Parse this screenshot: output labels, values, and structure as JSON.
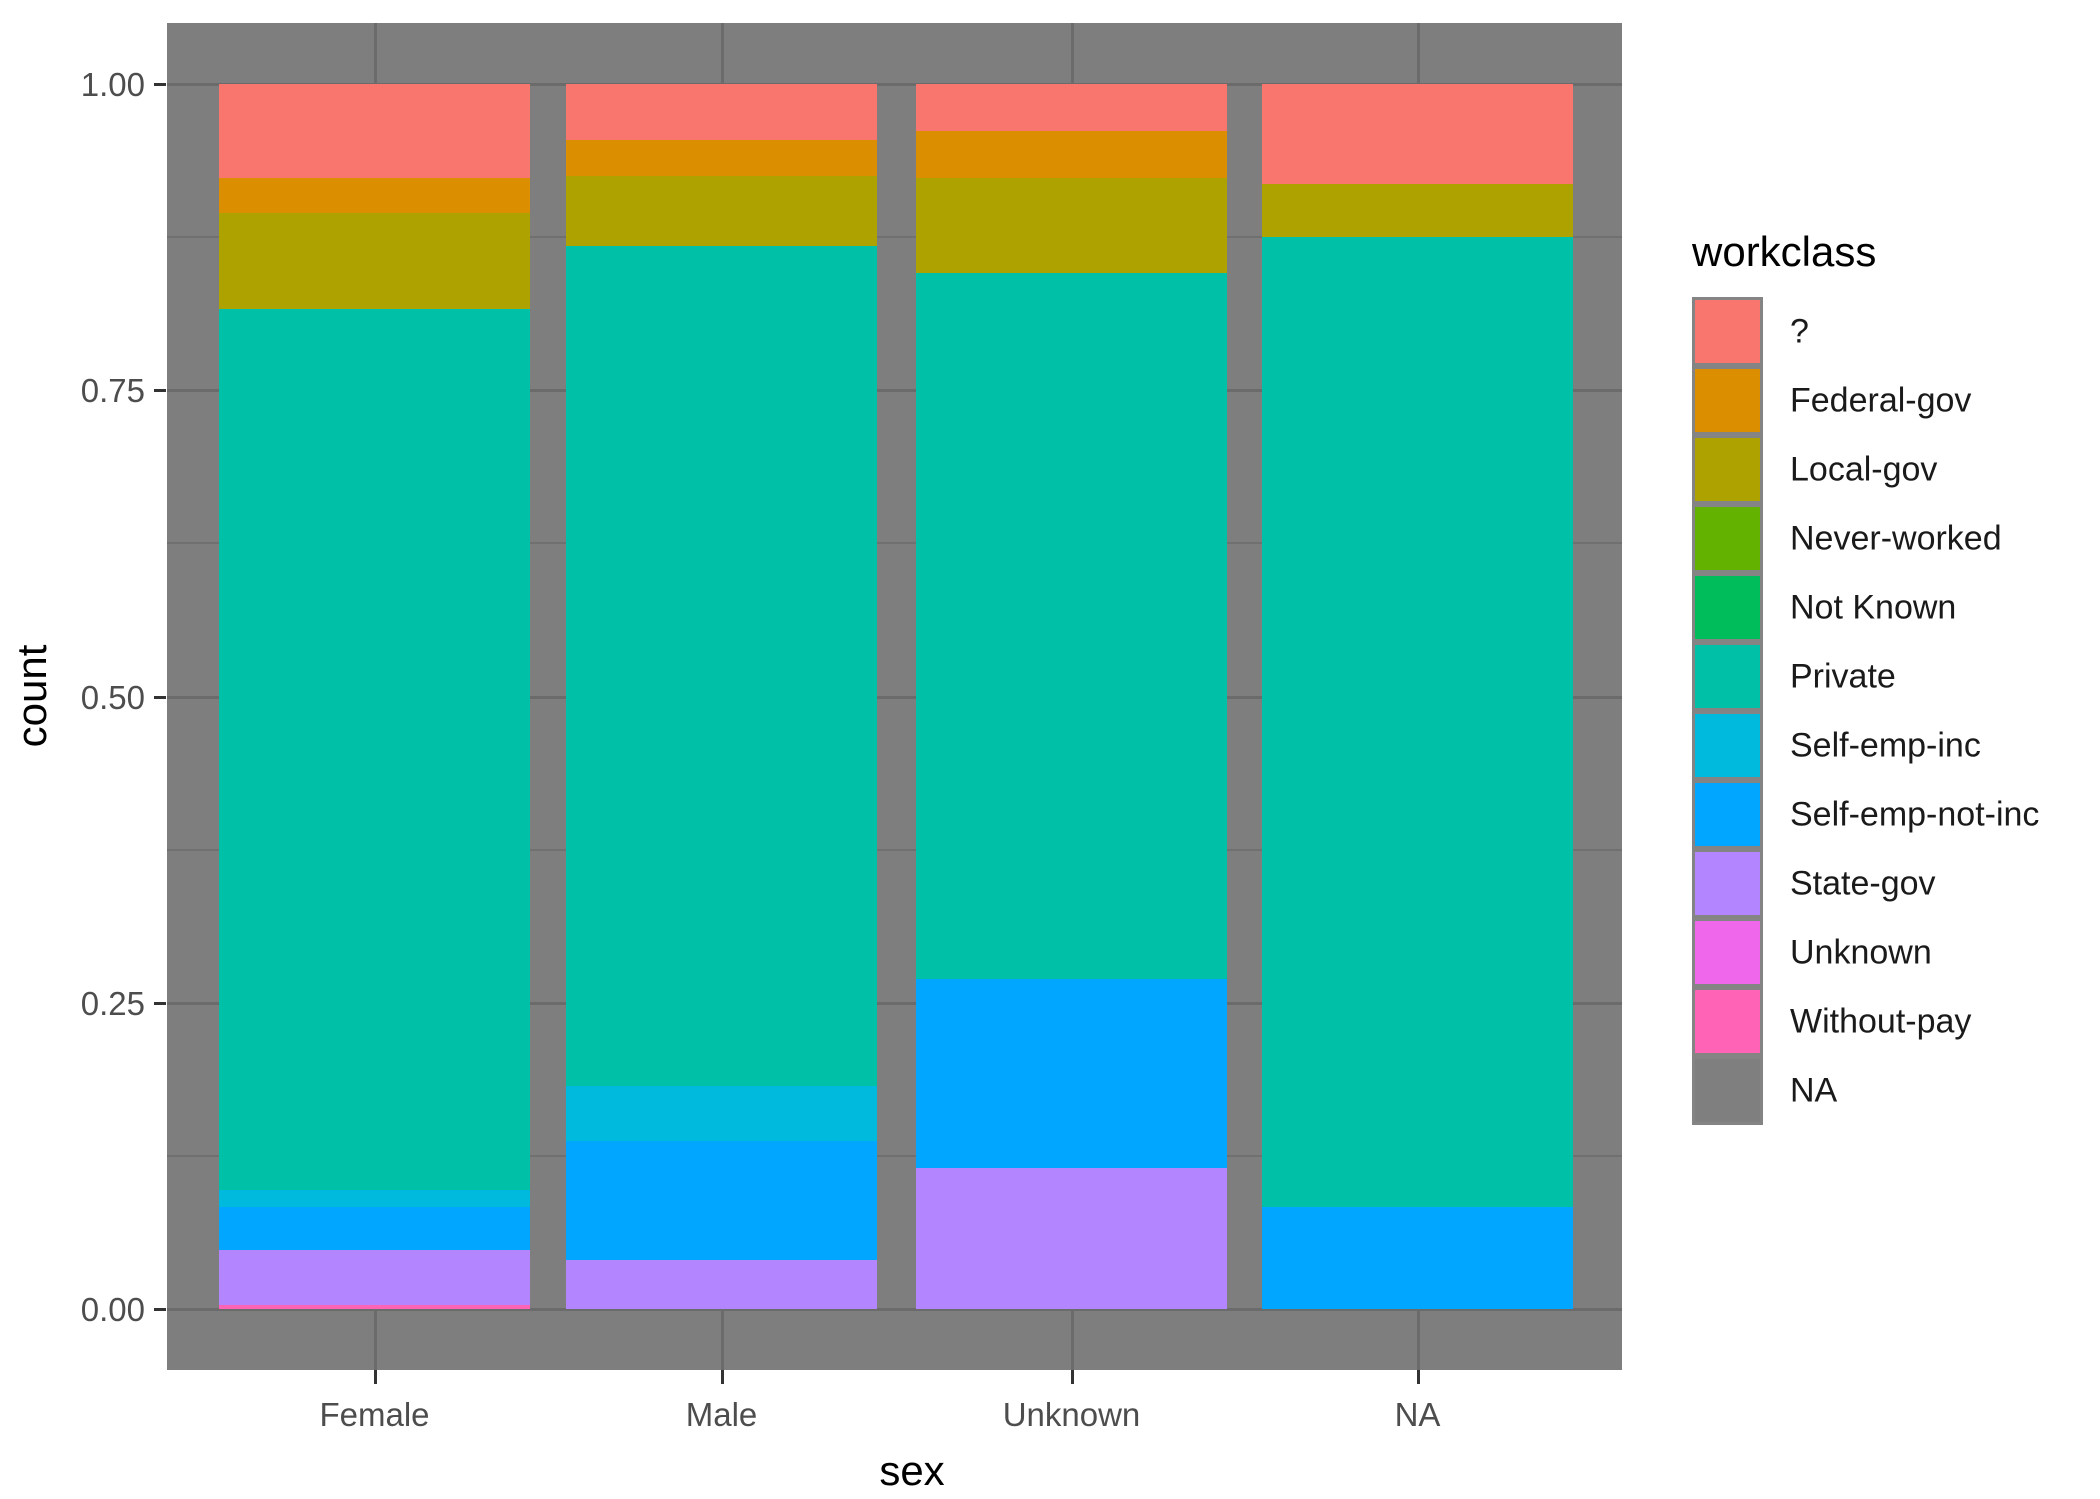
{
  "chart_data": {
    "type": "bar",
    "stack_mode": "fill",
    "orientation": "vertical",
    "title": "",
    "xlabel": "sex",
    "ylabel": "count",
    "legend_title": "workclass",
    "legend_position": "right",
    "categories": [
      "Female",
      "Male",
      "Unknown",
      "NA"
    ],
    "ylim": [
      0,
      1
    ],
    "y_ticks": [
      {
        "value": 1.0,
        "label": "1.00"
      },
      {
        "value": 0.75,
        "label": "0.75"
      },
      {
        "value": 0.5,
        "label": "0.50"
      },
      {
        "value": 0.25,
        "label": "0.25"
      },
      {
        "value": 0.0,
        "label": "0.00"
      }
    ],
    "y_minor_ticks": [
      0.875,
      0.625,
      0.375,
      0.125
    ],
    "grid": {
      "horizontal_major": true,
      "horizontal_minor": true,
      "vertical_major": true
    },
    "series": [
      {
        "name": "?",
        "color": "#F8766D",
        "values": [
          0.077,
          0.046,
          0.038,
          0.082
        ]
      },
      {
        "name": "Federal-gov",
        "color": "#DB8E00",
        "values": [
          0.028,
          0.029,
          0.039,
          0.0
        ]
      },
      {
        "name": "Local-gov",
        "color": "#AEA200",
        "values": [
          0.079,
          0.057,
          0.077,
          0.043
        ]
      },
      {
        "name": "Never-worked",
        "color": "#64B200",
        "values": [
          0.0,
          0.0,
          0.0,
          0.0
        ]
      },
      {
        "name": "Not Known",
        "color": "#00BD5C",
        "values": [
          0.0,
          0.0,
          0.0,
          0.0
        ]
      },
      {
        "name": "Private",
        "color": "#00C1A7",
        "values": [
          0.719,
          0.686,
          0.577,
          0.792
        ]
      },
      {
        "name": "Self-emp-inc",
        "color": "#00BADE",
        "values": [
          0.014,
          0.045,
          0.0,
          0.0
        ]
      },
      {
        "name": "Self-emp-not-inc",
        "color": "#00A6FF",
        "values": [
          0.035,
          0.097,
          0.154,
          0.083
        ]
      },
      {
        "name": "State-gov",
        "color": "#B385FF",
        "values": [
          0.045,
          0.04,
          0.115,
          0.0
        ]
      },
      {
        "name": "Unknown",
        "color": "#EF67EB",
        "values": [
          0.0,
          0.0,
          0.0,
          0.0
        ]
      },
      {
        "name": "Without-pay",
        "color": "#FF63B6",
        "values": [
          0.003,
          0.0,
          0.0,
          0.0
        ]
      },
      {
        "name": "NA",
        "color": "#7F7F7F",
        "values": [
          0.0,
          0.0,
          0.0,
          0.0
        ]
      }
    ]
  },
  "style": {
    "page_bg": "#FFFFFF",
    "panel_bg": "#7E7E7E",
    "grid_major_color": "#6B6B6B",
    "grid_minor_color": "#707070",
    "tick_mark_color": "#333333",
    "tick_label_color": "#4D4D4D",
    "axis_title_color": "#000000"
  }
}
